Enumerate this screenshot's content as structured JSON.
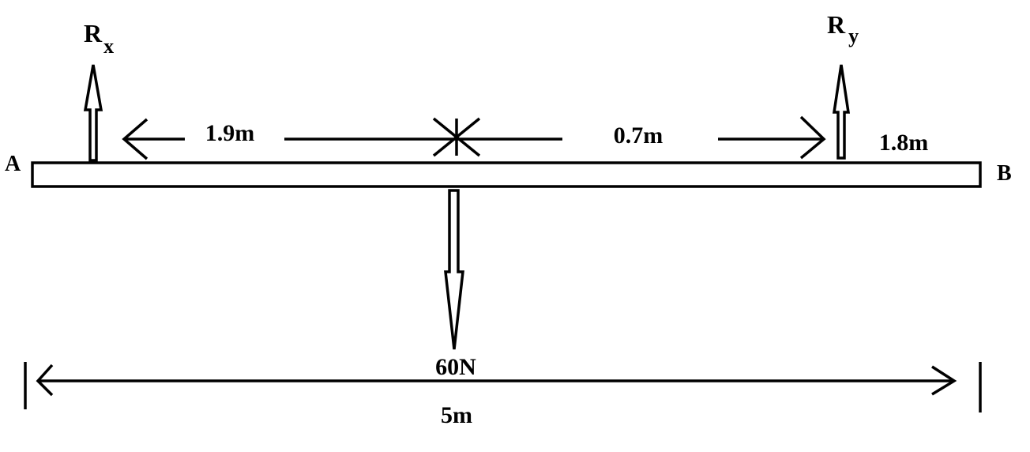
{
  "diagram": {
    "end_a_label": "A",
    "end_b_label": "B",
    "reaction_left_label": "R",
    "reaction_left_subscript": "x",
    "reaction_right_label": "R",
    "reaction_right_subscript": "y",
    "dimension_left": "1.9m",
    "dimension_middle": "0.7m",
    "dimension_right": "1.8m",
    "load_label": "60N",
    "total_length": "5m"
  },
  "colors": {
    "ink": "#000000",
    "background": "#ffffff"
  }
}
